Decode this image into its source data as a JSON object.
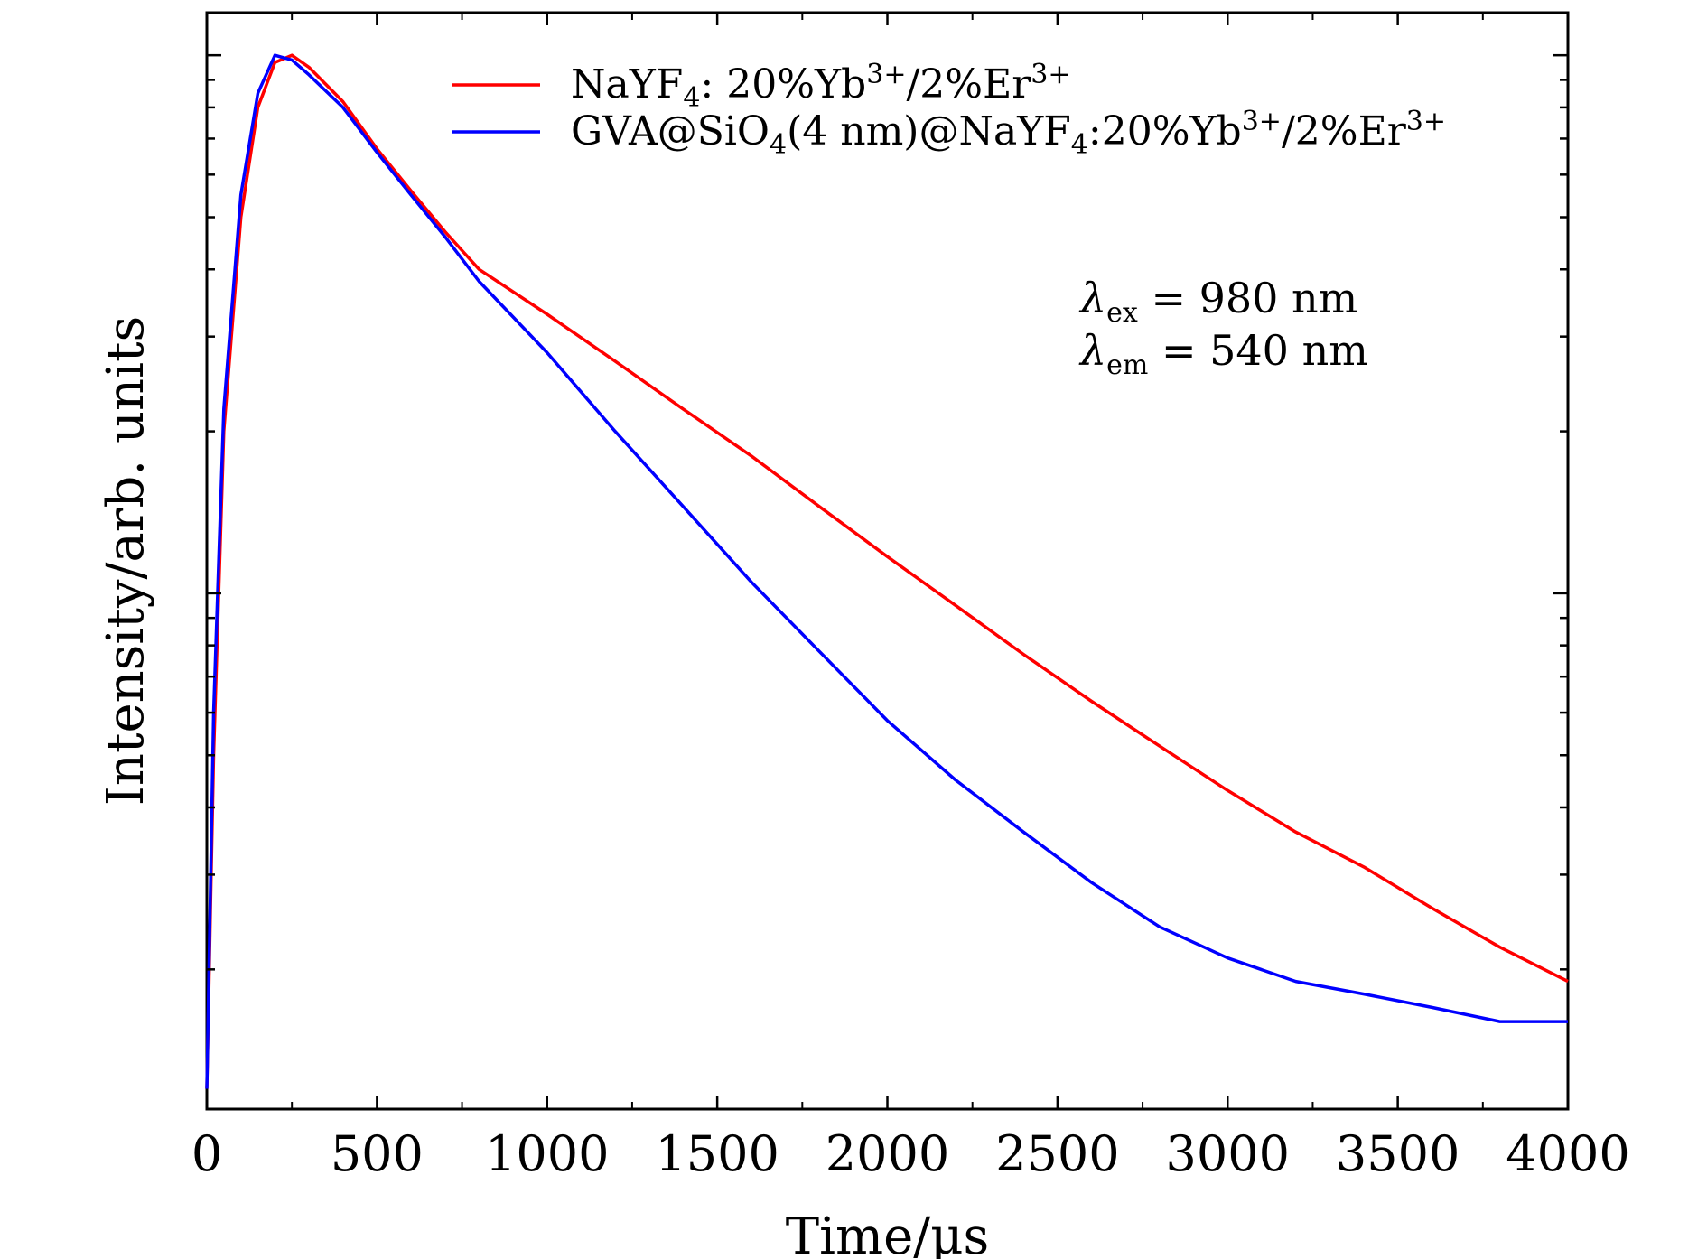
{
  "chart_data": {
    "type": "line",
    "xlabel": "Time/μs",
    "ylabel": "Intensity/arb. units",
    "xlim": [
      0,
      4000
    ],
    "x_ticks": [
      "0",
      "500",
      "1000",
      "1500",
      "2000",
      "2500",
      "3000",
      "3500",
      "4000"
    ],
    "y_scale": "log",
    "y_tick_labels": "none",
    "ylim": [
      0.011,
      1.2
    ],
    "grid": false,
    "legend_position": "top-right",
    "series": [
      {
        "name": "NaYF4: 20%Yb3+/2%Er3+",
        "color": "#ff0000",
        "x": [
          0,
          20,
          50,
          100,
          150,
          200,
          250,
          300,
          400,
          500,
          600,
          700,
          800,
          1000,
          1200,
          1400,
          1600,
          1800,
          2000,
          2200,
          2400,
          2600,
          2800,
          3000,
          3200,
          3400,
          3600,
          3800,
          4000
        ],
        "y": [
          0.012,
          0.05,
          0.2,
          0.5,
          0.8,
          0.97,
          1.0,
          0.95,
          0.82,
          0.67,
          0.56,
          0.47,
          0.4,
          0.33,
          0.27,
          0.22,
          0.18,
          0.145,
          0.117,
          0.095,
          0.077,
          0.063,
          0.052,
          0.043,
          0.036,
          0.031,
          0.026,
          0.022,
          0.019
        ]
      },
      {
        "name": "GVA@SiO4(4 nm)@NaYF4:20%Yb3+/2%Er3+",
        "color": "#0000ff",
        "x": [
          0,
          20,
          50,
          100,
          150,
          200,
          250,
          300,
          400,
          500,
          600,
          700,
          800,
          1000,
          1200,
          1400,
          1600,
          1800,
          2000,
          2200,
          2400,
          2600,
          2800,
          3000,
          3200,
          3400,
          3600,
          3800,
          4000
        ],
        "y": [
          0.012,
          0.06,
          0.22,
          0.55,
          0.85,
          1.0,
          0.98,
          0.92,
          0.8,
          0.66,
          0.55,
          0.46,
          0.38,
          0.28,
          0.2,
          0.145,
          0.105,
          0.078,
          0.058,
          0.045,
          0.036,
          0.029,
          0.024,
          0.021,
          0.019,
          0.018,
          0.017,
          0.016,
          0.016
        ]
      }
    ],
    "legend": [
      {
        "sup_parts": [
          "NaYF",
          "4",
          ": 20%Yb",
          "3+",
          "/2%Er",
          "3+"
        ]
      },
      {
        "sup_parts": [
          "GVA@SiO",
          "4",
          "(4 nm)@NaYF",
          "4",
          ":20%Yb",
          "3+",
          "/2%Er",
          "3+"
        ]
      }
    ],
    "annotations": {
      "line1": {
        "lambda": "λ",
        "sub": "ex",
        "rest": " = 980 nm"
      },
      "line2": {
        "lambda": "λ",
        "sub": "em",
        "rest": " = 540 nm"
      }
    }
  }
}
